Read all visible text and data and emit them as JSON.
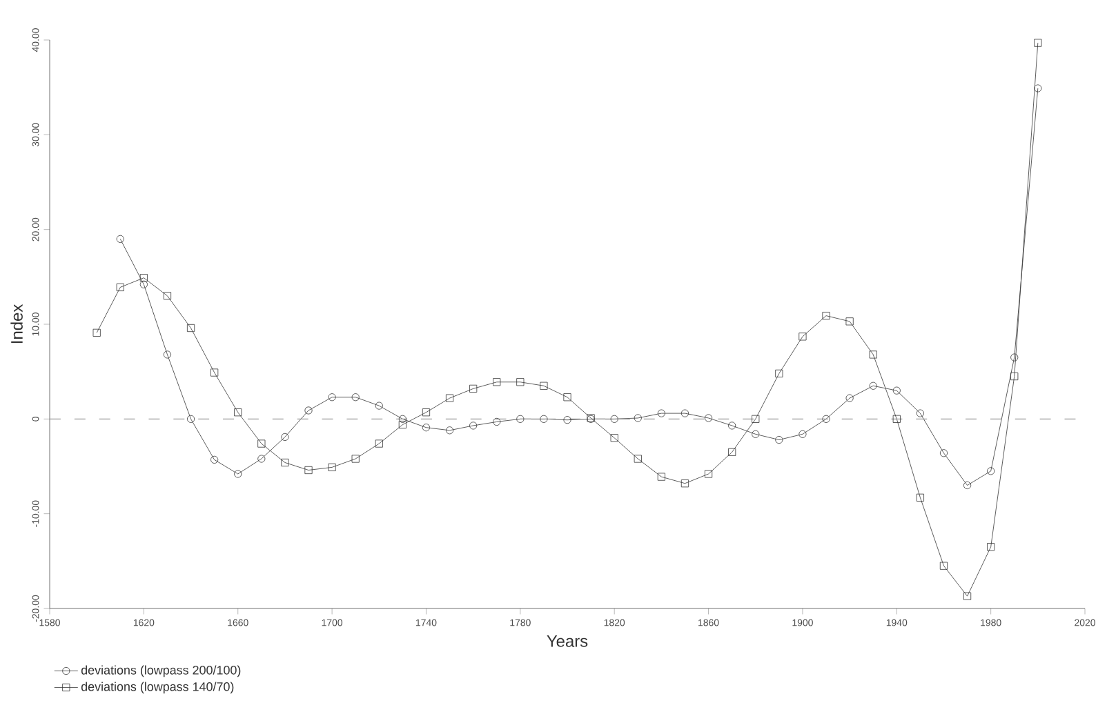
{
  "chart_data": {
    "type": "line",
    "xlabel": "Years",
    "ylabel": "Index",
    "x": [
      1600,
      1610,
      1620,
      1630,
      1640,
      1650,
      1660,
      1670,
      1680,
      1690,
      1700,
      1710,
      1720,
      1730,
      1740,
      1750,
      1760,
      1770,
      1780,
      1790,
      1800,
      1810,
      1820,
      1830,
      1840,
      1850,
      1860,
      1870,
      1880,
      1890,
      1900,
      1910,
      1920,
      1930,
      1940,
      1950,
      1960,
      1970,
      1980,
      1990,
      2000
    ],
    "series": [
      {
        "name": "deviations (lowpass 200/100)",
        "color": "#333333",
        "marker": "circle",
        "values": [
          null,
          19.0,
          14.2,
          6.8,
          0,
          -4.3,
          -5.8,
          -4.2,
          -1.9,
          0.9,
          2.3,
          2.3,
          1.4,
          0,
          -0.9,
          -1.2,
          -0.7,
          -0.3,
          0,
          0,
          -0.1,
          0,
          0,
          0.1,
          0.6,
          0.6,
          0.1,
          -0.7,
          -1.6,
          -2.2,
          -1.6,
          0,
          2.2,
          3.5,
          3.0,
          0.6,
          -3.6,
          -7.0,
          -5.5,
          6.5,
          34.9
        ]
      },
      {
        "name": "deviations (lowpass 140/70)",
        "color": "#333333",
        "marker": "square",
        "values": [
          9.1,
          13.9,
          14.9,
          13.0,
          9.6,
          4.9,
          0.7,
          -2.6,
          -4.6,
          -5.4,
          -5.1,
          -4.2,
          -2.6,
          -0.6,
          0.7,
          2.2,
          3.2,
          3.9,
          3.9,
          3.5,
          2.3,
          0.1,
          -2.0,
          -4.2,
          -6.1,
          -6.8,
          -5.8,
          -3.5,
          0,
          4.8,
          8.7,
          10.9,
          10.3,
          6.8,
          0,
          -8.3,
          -15.5,
          -18.7,
          -13.5,
          4.5,
          39.7
        ]
      }
    ],
    "xlim": [
      1580,
      2020
    ],
    "xticks": [
      1580,
      1620,
      1660,
      1700,
      1740,
      1780,
      1820,
      1860,
      1900,
      1940,
      1980,
      2020
    ],
    "ylim": [
      -20,
      40
    ],
    "yticks": [
      {
        "value": -20,
        "label": "-20.00"
      },
      {
        "value": -10,
        "label": "-10.00"
      },
      {
        "value": 0,
        "label": "0"
      },
      {
        "value": 10,
        "label": "10.00"
      },
      {
        "value": 20,
        "label": "20.00"
      },
      {
        "value": 30,
        "label": "30.00"
      },
      {
        "value": 40,
        "label": "40.00"
      }
    ],
    "ref_lines": [
      {
        "axis": "y",
        "value": 0,
        "color": "#999999",
        "line_style": "dashed"
      }
    ],
    "grid": false,
    "legend": "bottom left",
    "line_style": "solid"
  }
}
